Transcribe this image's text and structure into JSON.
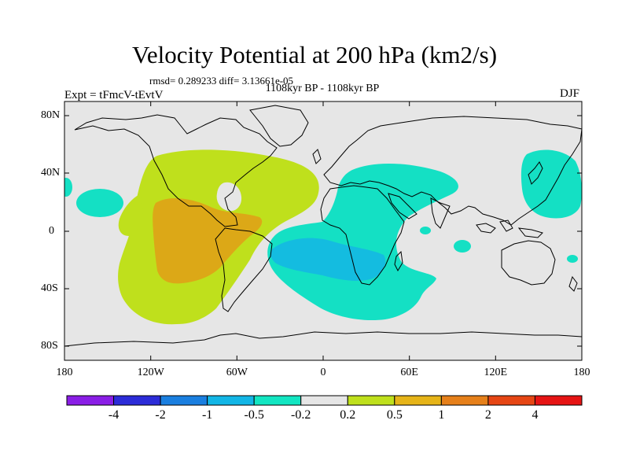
{
  "title": "Velocity Potential at 200 hPa (km2/s)",
  "subtitle": "rmsd= 0.289233 diff= 3.13661e-05",
  "time_label": "1108kyr BP - 1108kyr BP",
  "expt_label": "Expt = tFmcV-tEvtV",
  "season_label": "DJF",
  "map": {
    "lon_range": [
      -180,
      180
    ],
    "lat_range": [
      -90,
      90
    ],
    "y_ticks": [
      {
        "label": "80N",
        "lat": 80
      },
      {
        "label": "40N",
        "lat": 40
      },
      {
        "label": "0",
        "lat": 0
      },
      {
        "label": "40S",
        "lat": -40
      },
      {
        "label": "80S",
        "lat": -80
      }
    ],
    "x_ticks": [
      {
        "label": "180",
        "lon": -180
      },
      {
        "label": "120W",
        "lon": -120
      },
      {
        "label": "60W",
        "lon": -60
      },
      {
        "label": "0",
        "lon": 0
      },
      {
        "label": "60E",
        "lon": 60
      },
      {
        "label": "120E",
        "lon": 120
      },
      {
        "label": "180",
        "lon": 180
      }
    ]
  },
  "colorbar": {
    "colors": [
      "#8a1ee6",
      "#2c2cd8",
      "#1a7fe0",
      "#12b6e6",
      "#12e6c2",
      "#e6e6e6",
      "#bfe01c",
      "#e6b418",
      "#e6801a",
      "#e64614",
      "#e61414"
    ],
    "labels": [
      "-4",
      "-2",
      "-1",
      "-0.5",
      "-0.2",
      "0.2",
      "0.5",
      "1",
      "2",
      "4"
    ]
  },
  "fill_colors": {
    "background": "#e6e6e6",
    "pos_0_5": "#bfe01c",
    "pos_1": "#dca817",
    "neg_0_5": "#14e0c4",
    "neg_1": "#14bce0"
  }
}
